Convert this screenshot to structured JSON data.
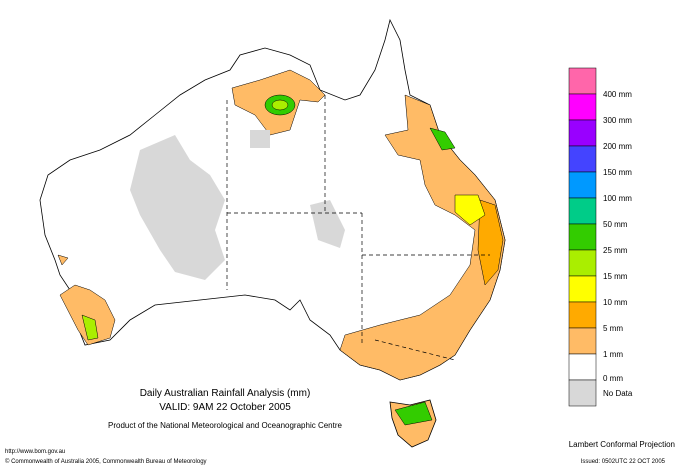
{
  "map": {
    "title": "Daily Australian Rainfall Analysis (mm)",
    "valid": "VALID: 9AM 22 October 2005",
    "product": "Product of the National Meteorological and Oceanographic Centre"
  },
  "legend": {
    "labels": [
      "400 mm",
      "300 mm",
      "200 mm",
      "150 mm",
      "100 mm",
      "50 mm",
      "25 mm",
      "15 mm",
      "10 mm",
      "5 mm",
      "1 mm",
      "0 mm",
      "No Data"
    ]
  },
  "footer": {
    "url": "http://www.bom.gov.au",
    "copyright": "© Commonwealth of Australia 2005, Commonwealth Bureau of Meteorology",
    "projection": "Lambert Conformal Projection",
    "issued": "Issued: 0502UTC 22 OCT 2005"
  }
}
